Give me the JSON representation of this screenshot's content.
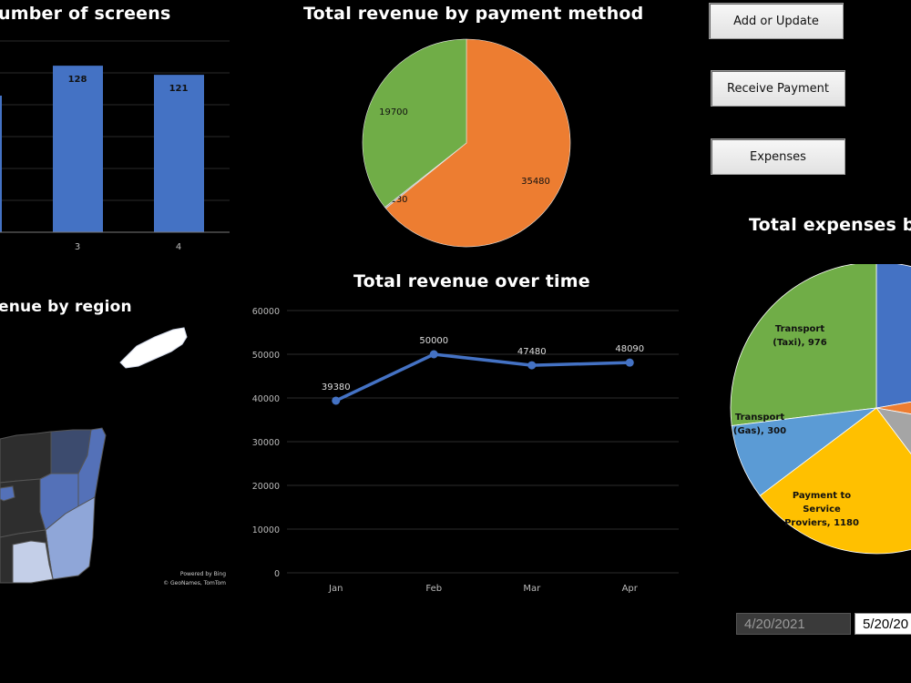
{
  "titles": {
    "screens": "umber of screens",
    "payment": "Total revenue by payment method",
    "region": "enue by region",
    "time": "Total revenue over time",
    "expenses": "Total expenses by"
  },
  "buttons": {
    "add_update": "Add or Update",
    "receive_payment": "Receive Payment",
    "expenses": "Expenses"
  },
  "dates": {
    "start": "4/20/2021",
    "end": "5/20/20"
  },
  "map": {
    "attribution_line1": "Powered by Bing",
    "attribution_line2": "© GeoNames, TomTom",
    "colors": [
      "#2e2e2e",
      "#3c4b6e",
      "#5471b8",
      "#8fa6d8",
      "#c4cfe8",
      "#ffffff"
    ]
  },
  "chart_data": [
    {
      "type": "bar",
      "title": "umber of screens",
      "categories": [
        "3",
        "4"
      ],
      "values": [
        128,
        121
      ],
      "color": "#4472c4"
    },
    {
      "type": "pie",
      "title": "Total revenue by payment method",
      "slices": [
        {
          "label": "35480",
          "value": 35480,
          "color": "#ed7d31"
        },
        {
          "label": "130",
          "value": 130,
          "color": "#a5a5a5"
        },
        {
          "label": "19700",
          "value": 19700,
          "color": "#70ad47"
        }
      ]
    },
    {
      "type": "line",
      "title": "Total revenue over time",
      "categories": [
        "Jan",
        "Feb",
        "Mar",
        "Apr"
      ],
      "values": [
        39380,
        50000,
        47480,
        48090
      ],
      "yticks": [
        0,
        10000,
        20000,
        30000,
        40000,
        50000,
        60000
      ],
      "ylim": [
        0,
        60000
      ],
      "color": "#4472c4"
    },
    {
      "type": "pie",
      "title": "Total expenses by",
      "slices": [
        {
          "label": "Transport (Taxi), 976",
          "value": 976,
          "color": "#70ad47"
        },
        {
          "label": "Transport (Gas), 300",
          "value": 300,
          "color": "#5b9bd5"
        },
        {
          "label": "Payment to Service Proviers, 1180",
          "value": 1180,
          "color": "#ffc000"
        }
      ],
      "partial_slice_colors": [
        "#4472c4",
        "#ed7d31",
        "#a5a5a5"
      ]
    }
  ]
}
